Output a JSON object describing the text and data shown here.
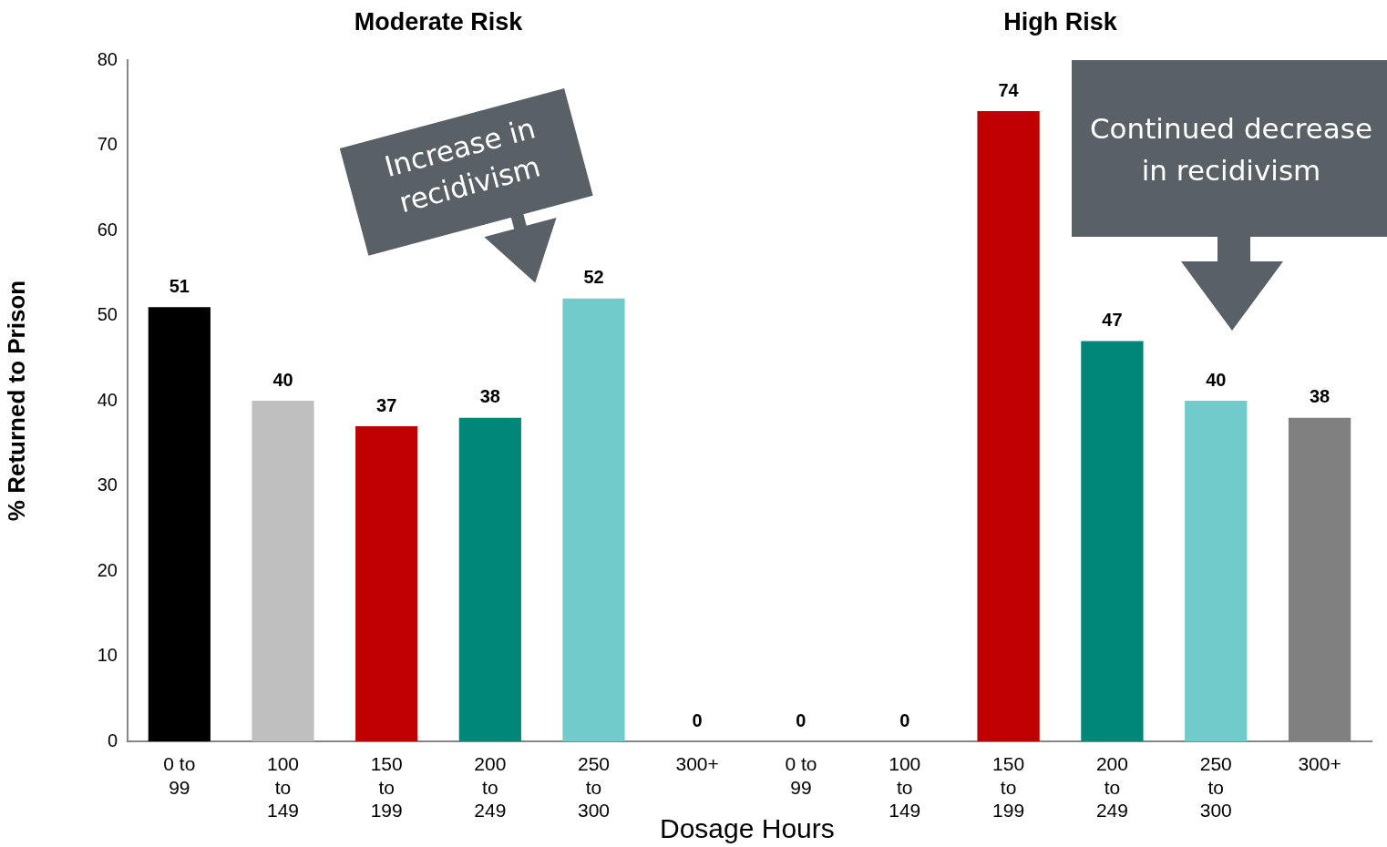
{
  "chart_data": [
    {
      "type": "bar",
      "title": "Moderate Risk",
      "ylabel": "% Returned to Prison",
      "xlabel": "Dosage Hours",
      "categories": [
        "0 to 99",
        "100 to 149",
        "150 to 199",
        "200 to 249",
        "250 to 300",
        "300+"
      ],
      "values": [
        51,
        40,
        37,
        38,
        52,
        0
      ],
      "colors": [
        "#000000",
        "#bfbfbf",
        "#c00000",
        "#00877a",
        "#71cbcb",
        "#808080"
      ],
      "ylim": [
        0,
        80
      ],
      "yticks": [
        0,
        10,
        20,
        30,
        40,
        50,
        60,
        70,
        80
      ],
      "grid": false,
      "data_labels": true,
      "annotations": [
        "Increase in recidivism"
      ]
    },
    {
      "type": "bar",
      "title": "High Risk",
      "categories": [
        "0 to 99",
        "100 to 149",
        "150 to 199",
        "200 to 249",
        "250 to 300",
        "300+"
      ],
      "values": [
        0,
        0,
        74,
        47,
        40,
        38
      ],
      "colors": [
        "#000000",
        "#bfbfbf",
        "#c00000",
        "#00877a",
        "#71cbcb",
        "#808080"
      ],
      "ylim": [
        0,
        80
      ],
      "tick_labels": "x",
      "grid": false,
      "data_labels": true,
      "annotations": [
        "Continued decrease in recidivism"
      ]
    }
  ]
}
